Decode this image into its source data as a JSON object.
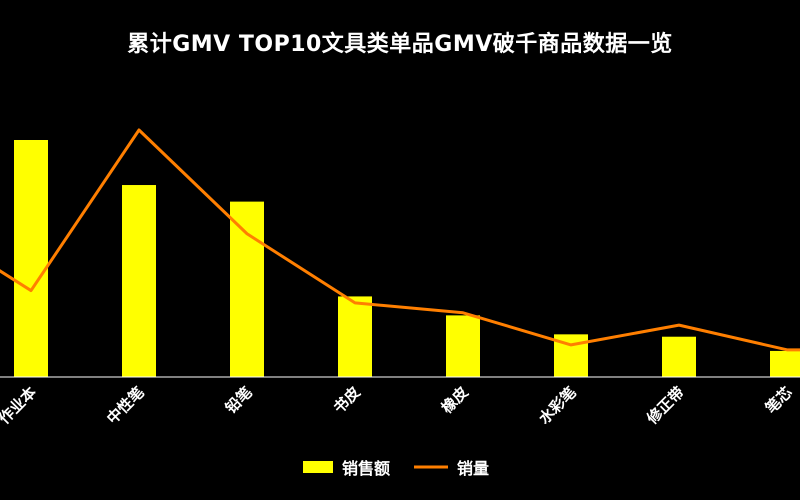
{
  "chart_data": {
    "type": "bar",
    "title": "累计GMV TOP10文具类单品GMV破千商品数据一览",
    "categories": [
      "作业本",
      "中性笔",
      "铅笔",
      "书皮",
      "橡皮",
      "水彩笔",
      "修正带",
      "笔芯"
    ],
    "series": [
      {
        "name": "销售额",
        "type": "bar",
        "color": "#FFFF00",
        "values": [
          100,
          81,
          74,
          34,
          26,
          18,
          17,
          11
        ]
      },
      {
        "name": "销量",
        "type": "line",
        "color": "#FF7F00",
        "values": [
          35,
          100,
          58,
          30,
          26,
          13,
          21,
          11
        ]
      }
    ],
    "left_edge_value": {
      "bar": null,
      "line": 45
    },
    "grid": false,
    "legend_position": "bottom"
  }
}
